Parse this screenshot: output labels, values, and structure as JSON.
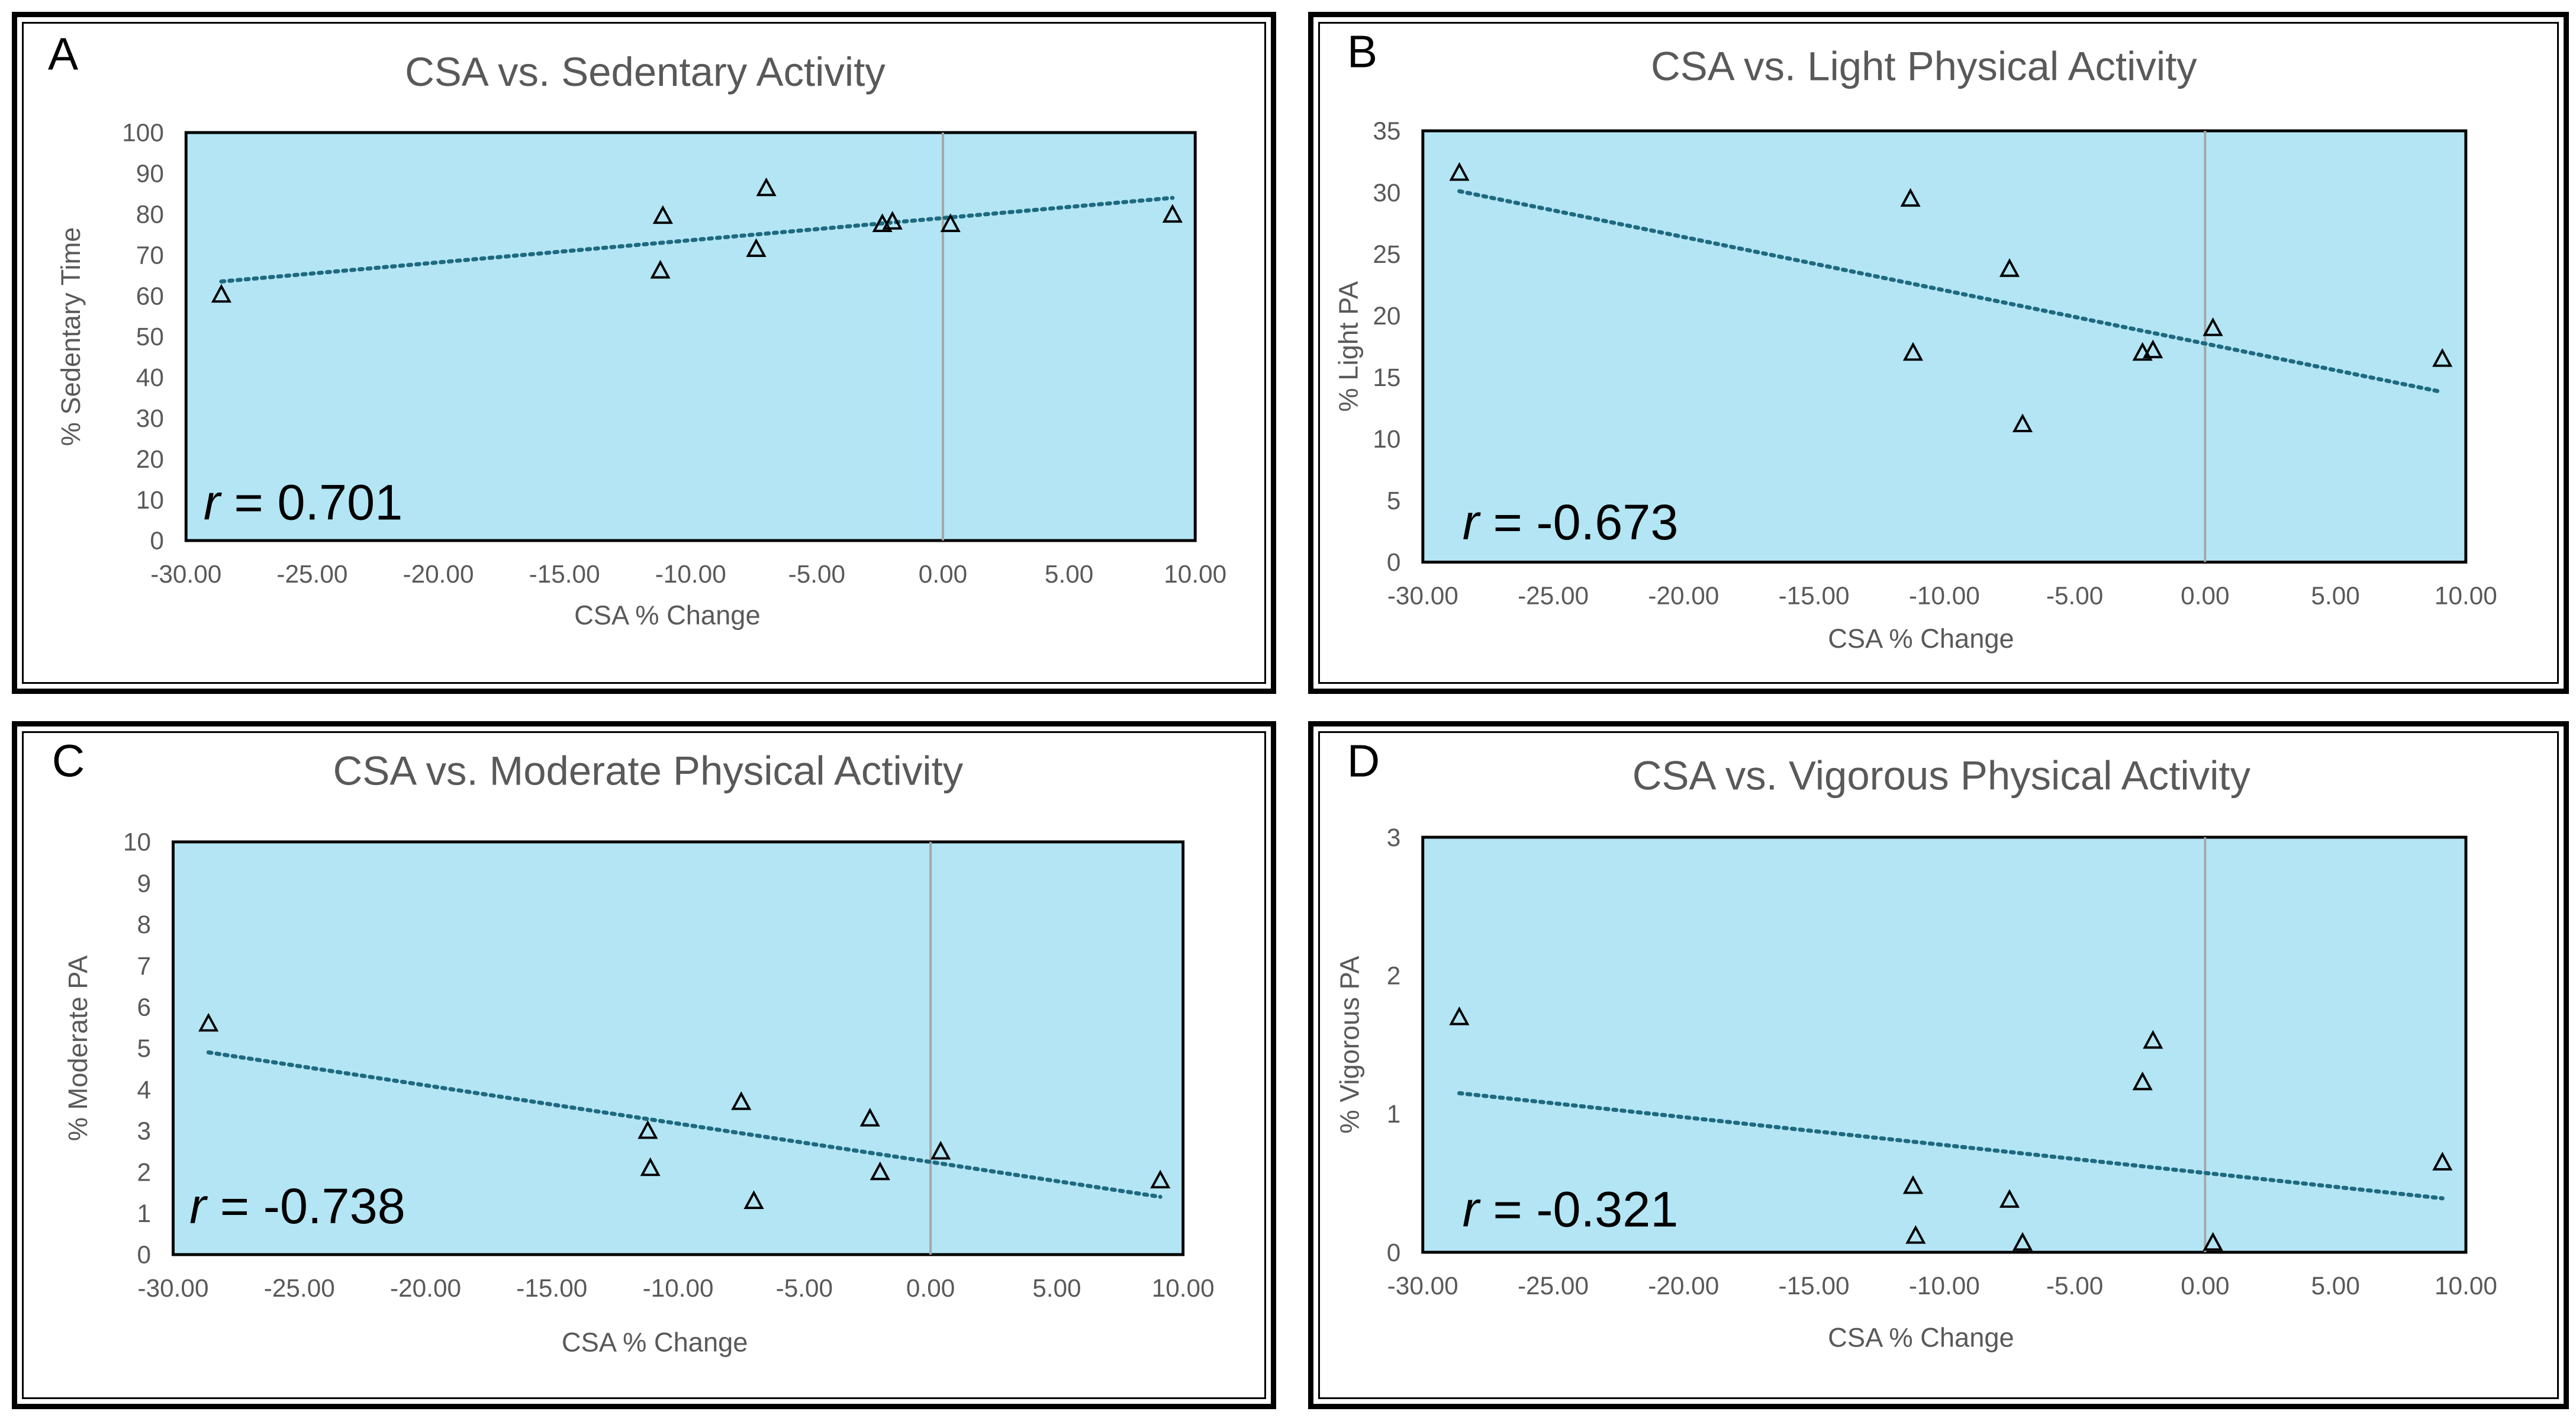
{
  "colors": {
    "plot_bg": "#b3e5f4",
    "trend": "#1e6a80",
    "marker": "#000000",
    "zero_line": "#a6a6a6"
  },
  "chart_data": [
    {
      "type": "scatter",
      "letter": "A",
      "title": "CSA vs. Sedentary Activity",
      "xlabel": "CSA % Change",
      "ylabel": "% Sedentary Time",
      "xlim": [
        -30,
        10
      ],
      "ylim": [
        0,
        100
      ],
      "xticks": [
        -30,
        -25,
        -20,
        -15,
        -10,
        -5,
        0,
        5,
        10
      ],
      "xtick_labels": [
        "-30.00",
        "-25.00",
        "-20.00",
        "-15.00",
        "-10.00",
        "-5.00",
        "0.00",
        "5.00",
        "10.00"
      ],
      "yticks": [
        0,
        10,
        20,
        30,
        40,
        50,
        60,
        70,
        80,
        90,
        100
      ],
      "ytick_labels": [
        "0",
        "10",
        "20",
        "30",
        "40",
        "50",
        "60",
        "70",
        "80",
        "90",
        "100"
      ],
      "x": [
        -28.6,
        -11.1,
        -11.2,
        -7.0,
        -7.4,
        -2.4,
        -2.0,
        0.3,
        9.1
      ],
      "y": [
        60.3,
        79.6,
        66.2,
        86.4,
        71.5,
        77.6,
        78.2,
        77.6,
        79.9
      ],
      "trendline": {
        "x": [
          -28.6,
          9.1
        ],
        "y": [
          63.5,
          84.0
        ]
      },
      "r_label": "r",
      "r_value": " = 0.701"
    },
    {
      "type": "scatter",
      "letter": "B",
      "title": "CSA vs. Light Physical Activity",
      "xlabel": "CSA % Change",
      "ylabel": "% Light PA",
      "xlim": [
        -30,
        10
      ],
      "ylim": [
        0,
        35
      ],
      "xticks": [
        -30,
        -25,
        -20,
        -15,
        -10,
        -5,
        0,
        5,
        10
      ],
      "xtick_labels": [
        "-30.00",
        "-25.00",
        "-20.00",
        "-15.00",
        "-10.00",
        "-5.00",
        "0.00",
        "5.00",
        "10.00"
      ],
      "yticks": [
        0,
        5,
        10,
        15,
        20,
        25,
        30,
        35
      ],
      "ytick_labels": [
        "0",
        "5",
        "10",
        "15",
        "20",
        "25",
        "30",
        "35"
      ],
      "x": [
        -28.6,
        -11.3,
        -11.2,
        -7.5,
        -7.0,
        -2.4,
        -2.0,
        0.3,
        9.1
      ],
      "y": [
        31.6,
        29.5,
        17.0,
        23.8,
        11.2,
        17.0,
        17.2,
        19.0,
        16.5
      ],
      "trendline": {
        "x": [
          -28.6,
          9.1
        ],
        "y": [
          30.1,
          13.8
        ]
      },
      "r_label": "r",
      "r_value": " = -0.673"
    },
    {
      "type": "scatter",
      "letter": "C",
      "title": "CSA vs. Moderate Physical Activity",
      "xlabel": "CSA % Change",
      "ylabel": "% Moderate PA",
      "xlim": [
        -30,
        10
      ],
      "ylim": [
        0,
        10
      ],
      "xticks": [
        -30,
        -25,
        -20,
        -15,
        -10,
        -5,
        0,
        5,
        10
      ],
      "xtick_labels": [
        "-30.00",
        "-25.00",
        "-20.00",
        "-15.00",
        "-10.00",
        "-5.00",
        "0.00",
        "5.00",
        "10.00"
      ],
      "yticks": [
        0,
        1,
        2,
        3,
        4,
        5,
        6,
        7,
        8,
        9,
        10
      ],
      "ytick_labels": [
        "0",
        "1",
        "2",
        "3",
        "4",
        "5",
        "6",
        "7",
        "8",
        "9",
        "10"
      ],
      "x": [
        -28.6,
        -11.2,
        -11.1,
        -7.5,
        -7.0,
        -2.4,
        -2.0,
        0.4,
        9.1
      ],
      "y": [
        5.6,
        3.0,
        2.1,
        3.7,
        1.3,
        3.3,
        2.0,
        2.5,
        1.8
      ],
      "trendline": {
        "x": [
          -28.6,
          9.1
        ],
        "y": [
          4.9,
          1.4
        ]
      },
      "r_label": "r",
      "r_value": " = -0.738"
    },
    {
      "type": "scatter",
      "letter": "D",
      "title": "CSA vs. Vigorous Physical Activity",
      "xlabel": "CSA % Change",
      "ylabel": "% Vigorous PA",
      "xlim": [
        -30,
        10
      ],
      "ylim": [
        0,
        3
      ],
      "xticks": [
        -30,
        -25,
        -20,
        -15,
        -10,
        -5,
        0,
        5,
        10
      ],
      "xtick_labels": [
        "-30.00",
        "-25.00",
        "-20.00",
        "-15.00",
        "-10.00",
        "-5.00",
        "0.00",
        "5.00",
        "10.00"
      ],
      "yticks": [
        0,
        1,
        2,
        3
      ],
      "ytick_labels": [
        "0",
        "1",
        "2",
        "3"
      ],
      "x": [
        -28.6,
        -11.2,
        -11.1,
        -7.5,
        -7.0,
        -2.4,
        -2.0,
        0.3,
        9.1
      ],
      "y": [
        1.7,
        0.48,
        0.12,
        0.38,
        0.07,
        1.23,
        1.53,
        0.07,
        0.65
      ],
      "trendline": {
        "x": [
          -28.6,
          9.1
        ],
        "y": [
          1.15,
          0.39
        ]
      },
      "r_label": "r",
      "r_value": " = -0.321"
    }
  ]
}
